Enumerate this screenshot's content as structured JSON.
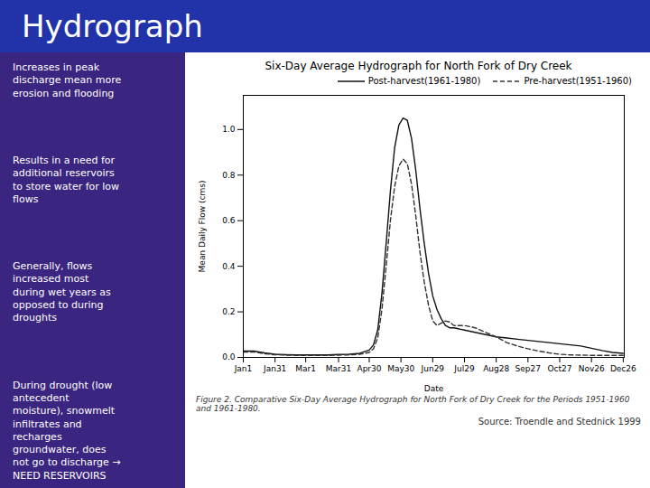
{
  "title": "Hydrograph",
  "text": [
    "Increases in peak\ndischarge mean more\nerosion and flooding",
    "Results in a need for\nadditional reservoirs\nto store water for low\nflows",
    "Generally, flows\nincreased most\nduring wet years as\nopposed to during\ndroughts",
    "During drought (low\nantecedent\nmoisture), snowmelt\ninfiltrates and\nrecharges\ngroundwater, does\nnot go to discharge →\nNEED RESERVOIRS"
  ],
  "caption": "Figure 2. Comparative Six-Day Average Hydrograph for North Fork of Dry Creek for the Periods 1951-1960 and 1961-1980.",
  "source": "Source: Troendle and Stednick 1999",
  "chart_data": {
    "type": "line",
    "title": "Six-Day Average Hydrograph for North Fork of Dry Creek",
    "x_label": "Date",
    "y_label": "Mean Daily Flow (cms)",
    "x": [
      0,
      10,
      20,
      30,
      40,
      50,
      60,
      65,
      70,
      80,
      90,
      100,
      110,
      119,
      123,
      127,
      131,
      135,
      139,
      143,
      147,
      151,
      155,
      159,
      163,
      167,
      171,
      175,
      179,
      183,
      187,
      191,
      195,
      199,
      209,
      219,
      229,
      239,
      249,
      259,
      269,
      279,
      289,
      299,
      309,
      319,
      329,
      339,
      349,
      359
    ],
    "series": [
      {
        "name": "Post-harvest(1961-1980)",
        "color": "#111111",
        "line_style": "solid",
        "values": [
          0.028,
          0.028,
          0.02,
          0.014,
          0.012,
          0.011,
          0.011,
          0.011,
          0.011,
          0.011,
          0.013,
          0.014,
          0.018,
          0.032,
          0.055,
          0.12,
          0.28,
          0.5,
          0.73,
          0.92,
          1.02,
          1.05,
          1.04,
          0.96,
          0.82,
          0.65,
          0.5,
          0.37,
          0.27,
          0.21,
          0.17,
          0.14,
          0.13,
          0.13,
          0.12,
          0.11,
          0.1,
          0.09,
          0.085,
          0.08,
          0.075,
          0.07,
          0.065,
          0.06,
          0.055,
          0.05,
          0.04,
          0.03,
          0.022,
          0.018
        ]
      },
      {
        "name": "Pre-harvest(1951-1960)",
        "color": "#333333",
        "line_style": "dashed",
        "values": [
          0.024,
          0.024,
          0.016,
          0.012,
          0.01,
          0.009,
          0.009,
          0.009,
          0.009,
          0.009,
          0.01,
          0.011,
          0.014,
          0.022,
          0.038,
          0.085,
          0.21,
          0.4,
          0.6,
          0.75,
          0.84,
          0.87,
          0.85,
          0.76,
          0.62,
          0.46,
          0.33,
          0.23,
          0.16,
          0.14,
          0.15,
          0.16,
          0.155,
          0.14,
          0.14,
          0.13,
          0.11,
          0.09,
          0.065,
          0.05,
          0.038,
          0.028,
          0.02,
          0.014,
          0.011,
          0.01,
          0.009,
          0.009,
          0.009,
          0.009
        ]
      }
    ],
    "xlim": [
      0,
      360
    ],
    "xticks": [
      {
        "value": 0,
        "label": "Jan1"
      },
      {
        "value": 30,
        "label": "Jan31"
      },
      {
        "value": 59,
        "label": "Mar1"
      },
      {
        "value": 90,
        "label": "Mar31"
      },
      {
        "value": 119,
        "label": "Apr30"
      },
      {
        "value": 149,
        "label": "May30"
      },
      {
        "value": 179,
        "label": "Jun29"
      },
      {
        "value": 209,
        "label": "Jul29"
      },
      {
        "value": 239,
        "label": "Aug28"
      },
      {
        "value": 269,
        "label": "Sep27"
      },
      {
        "value": 299,
        "label": "Oct27"
      },
      {
        "value": 329,
        "label": "Nov26"
      },
      {
        "value": 359,
        "label": "Dec26"
      }
    ],
    "ylim": [
      0.0,
      1.15
    ],
    "yticks": [
      {
        "value": 0.0,
        "label": "0.0"
      },
      0.2,
      0.4,
      0.6,
      0.8,
      {
        "value": 1.0,
        "label": "1.0"
      }
    ],
    "legend": "upper right"
  }
}
